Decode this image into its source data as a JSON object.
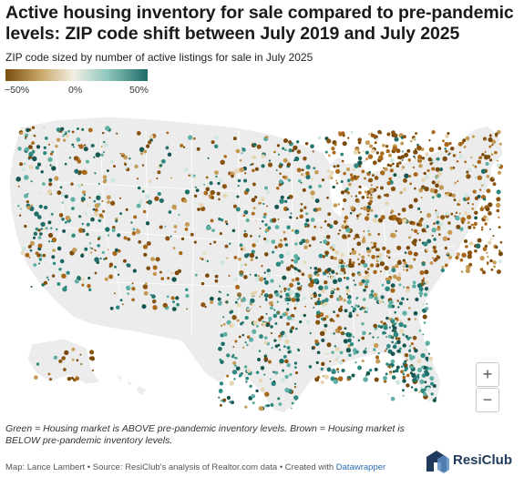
{
  "title": "Active housing inventory for sale compared to pre-pandemic levels: ZIP code shift between July 2019 and July 2025",
  "subtitle": "ZIP code sized by number of active listings for sale in July 2025",
  "legend": {
    "ticks": [
      "−50%",
      "0%",
      "50%"
    ],
    "colors": {
      "low": "#8a5a12",
      "mid": "#f1efe7",
      "high": "#1f6b66"
    },
    "tick_values": [
      -50,
      0,
      50
    ]
  },
  "map": {
    "region": "United States (ZIP codes)",
    "land_color": "#ececec",
    "border_color": "#ffffff",
    "brown_color": "#9a5d14",
    "green_color": "#1f6f68",
    "zoom_in_label": "+",
    "zoom_out_label": "−"
  },
  "note": "Green = Housing market is ABOVE pre-pandemic inventory levels. Brown = Housing market is BELOW pre-pandemic inventory levels.",
  "footer": {
    "credit": "Map: Lance Lambert • Source: ResiClub's analysis of Realtor.com data • Created with ",
    "link": "Datawrapper"
  },
  "brand": {
    "name": "ResiClub",
    "color": "#1f3a5a"
  }
}
